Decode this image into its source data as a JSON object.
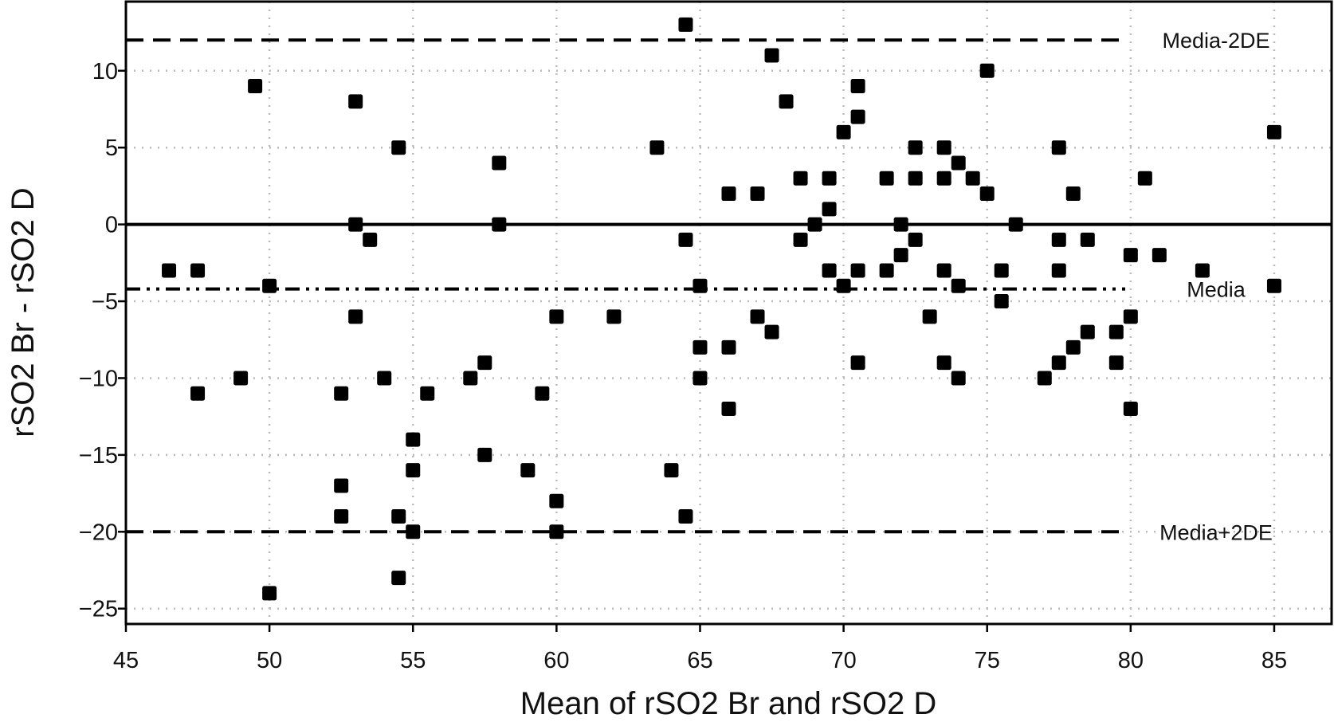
{
  "chart_data": {
    "type": "scatter",
    "title": "",
    "xlabel": "Mean of rSO2 Br and rSO2 D",
    "ylabel": "rSO2 Br - rSO2 D",
    "xlim": [
      45,
      87
    ],
    "ylim": [
      -26,
      14.5
    ],
    "xticks": [
      45,
      50,
      55,
      60,
      65,
      70,
      75,
      80,
      85
    ],
    "yticks": [
      -25,
      -20,
      -15,
      -10,
      -5,
      0,
      5,
      10
    ],
    "ytick_labels": [
      "−25",
      "−20",
      "−15",
      "−10",
      "−5",
      "0",
      "5",
      "10"
    ],
    "grid": "dotted",
    "marker": "square",
    "colors": {
      "marker": "#000000",
      "grid": "#bbbbbb",
      "line": "#000000"
    },
    "reference_lines": [
      {
        "label": "Media-2DE",
        "y": 12,
        "style": "dashed"
      },
      {
        "label": "",
        "y": 0,
        "style": "solid"
      },
      {
        "label": "Media",
        "y": -4.2,
        "style": "dashdot"
      },
      {
        "label": "Media+2DE",
        "y": -20,
        "style": "dashed"
      }
    ],
    "points": [
      {
        "x": 46.5,
        "y": -3
      },
      {
        "x": 47.5,
        "y": -3
      },
      {
        "x": 47.5,
        "y": -11
      },
      {
        "x": 49,
        "y": -10
      },
      {
        "x": 49.5,
        "y": 9
      },
      {
        "x": 50,
        "y": -4
      },
      {
        "x": 50,
        "y": -24
      },
      {
        "x": 52.5,
        "y": -11
      },
      {
        "x": 52.5,
        "y": -17
      },
      {
        "x": 52.5,
        "y": -19
      },
      {
        "x": 53,
        "y": 8
      },
      {
        "x": 53,
        "y": 0
      },
      {
        "x": 53,
        "y": -6
      },
      {
        "x": 53.5,
        "y": -1
      },
      {
        "x": 54,
        "y": -10
      },
      {
        "x": 54.5,
        "y": 5
      },
      {
        "x": 54.5,
        "y": -19
      },
      {
        "x": 54.5,
        "y": -23
      },
      {
        "x": 55,
        "y": -14
      },
      {
        "x": 55,
        "y": -16
      },
      {
        "x": 55,
        "y": -20
      },
      {
        "x": 55.5,
        "y": -11
      },
      {
        "x": 57,
        "y": -10
      },
      {
        "x": 57.5,
        "y": -9
      },
      {
        "x": 57.5,
        "y": -15
      },
      {
        "x": 58,
        "y": 4
      },
      {
        "x": 58,
        "y": 0
      },
      {
        "x": 59,
        "y": -16
      },
      {
        "x": 59.5,
        "y": -11
      },
      {
        "x": 60,
        "y": -6
      },
      {
        "x": 60,
        "y": -18
      },
      {
        "x": 60,
        "y": -20
      },
      {
        "x": 62,
        "y": -6
      },
      {
        "x": 63.5,
        "y": 5
      },
      {
        "x": 64,
        "y": -16
      },
      {
        "x": 64.5,
        "y": 13
      },
      {
        "x": 64.5,
        "y": -1
      },
      {
        "x": 64.5,
        "y": -19
      },
      {
        "x": 65,
        "y": -4
      },
      {
        "x": 65,
        "y": -8
      },
      {
        "x": 65,
        "y": -10
      },
      {
        "x": 66,
        "y": 2
      },
      {
        "x": 66,
        "y": -8
      },
      {
        "x": 66,
        "y": -12
      },
      {
        "x": 67,
        "y": 2
      },
      {
        "x": 67,
        "y": -6
      },
      {
        "x": 67.5,
        "y": 11
      },
      {
        "x": 67.5,
        "y": -7
      },
      {
        "x": 68,
        "y": 8
      },
      {
        "x": 68.5,
        "y": 3
      },
      {
        "x": 68.5,
        "y": -1
      },
      {
        "x": 69,
        "y": 0
      },
      {
        "x": 69.5,
        "y": 3
      },
      {
        "x": 69.5,
        "y": 1
      },
      {
        "x": 69.5,
        "y": -3
      },
      {
        "x": 70,
        "y": 6
      },
      {
        "x": 70,
        "y": -4
      },
      {
        "x": 70.5,
        "y": 9
      },
      {
        "x": 70.5,
        "y": 7
      },
      {
        "x": 70.5,
        "y": -3
      },
      {
        "x": 70.5,
        "y": -9
      },
      {
        "x": 71.5,
        "y": 3
      },
      {
        "x": 71.5,
        "y": -3
      },
      {
        "x": 72,
        "y": 0
      },
      {
        "x": 72,
        "y": -2
      },
      {
        "x": 72.5,
        "y": 5
      },
      {
        "x": 72.5,
        "y": 3
      },
      {
        "x": 72.5,
        "y": -1
      },
      {
        "x": 73,
        "y": -6
      },
      {
        "x": 73.5,
        "y": 5
      },
      {
        "x": 73.5,
        "y": 3
      },
      {
        "x": 73.5,
        "y": -3
      },
      {
        "x": 73.5,
        "y": -9
      },
      {
        "x": 74,
        "y": 4
      },
      {
        "x": 74,
        "y": -4
      },
      {
        "x": 74,
        "y": -10
      },
      {
        "x": 74.5,
        "y": 3
      },
      {
        "x": 75,
        "y": 10
      },
      {
        "x": 75,
        "y": 2
      },
      {
        "x": 75.5,
        "y": -3
      },
      {
        "x": 75.5,
        "y": -5
      },
      {
        "x": 76,
        "y": 0
      },
      {
        "x": 77,
        "y": -10
      },
      {
        "x": 77.5,
        "y": 5
      },
      {
        "x": 77.5,
        "y": -1
      },
      {
        "x": 77.5,
        "y": -3
      },
      {
        "x": 77.5,
        "y": -9
      },
      {
        "x": 78,
        "y": 2
      },
      {
        "x": 78,
        "y": -8
      },
      {
        "x": 78.5,
        "y": -1
      },
      {
        "x": 78.5,
        "y": -7
      },
      {
        "x": 79.5,
        "y": -7
      },
      {
        "x": 79.5,
        "y": -9
      },
      {
        "x": 80,
        "y": -2
      },
      {
        "x": 80,
        "y": -6
      },
      {
        "x": 80,
        "y": -12
      },
      {
        "x": 80.5,
        "y": 3
      },
      {
        "x": 81,
        "y": -2
      },
      {
        "x": 82.5,
        "y": -3
      },
      {
        "x": 85,
        "y": 6
      },
      {
        "x": 85,
        "y": -4
      }
    ]
  }
}
